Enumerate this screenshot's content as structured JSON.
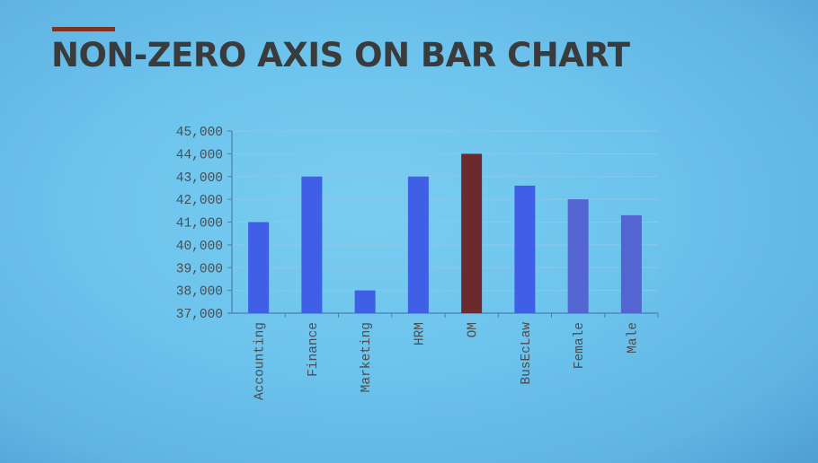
{
  "slide": {
    "title": "NON-ZERO AXIS ON BAR CHART"
  },
  "chart_data": {
    "type": "bar",
    "title": "",
    "xlabel": "",
    "ylabel": "",
    "categories": [
      "Accounting",
      "Finance",
      "Marketing",
      "HRM",
      "OM",
      "BusEcLaw",
      "Female",
      "Male"
    ],
    "values": [
      41000,
      43000,
      38000,
      43000,
      44000,
      42600,
      42000,
      41300
    ],
    "ylim": [
      37000,
      45000
    ],
    "yticks": [
      37000,
      38000,
      39000,
      40000,
      41000,
      42000,
      43000,
      44000,
      45000
    ],
    "ytick_labels": [
      "37,000",
      "38,000",
      "39,000",
      "40,000",
      "41,000",
      "42,000",
      "43,000",
      "44,000",
      "45,000"
    ],
    "grid": true,
    "legend": "none",
    "bar_colors": [
      "#3f5fe6",
      "#3f5fe6",
      "#3f5fe6",
      "#3f5fe6",
      "#6b2a2e",
      "#3f5fe6",
      "#5464d0",
      "#5464d0"
    ],
    "grid_color": "#8fc6e6",
    "axis_color": "#4a7fb0"
  }
}
